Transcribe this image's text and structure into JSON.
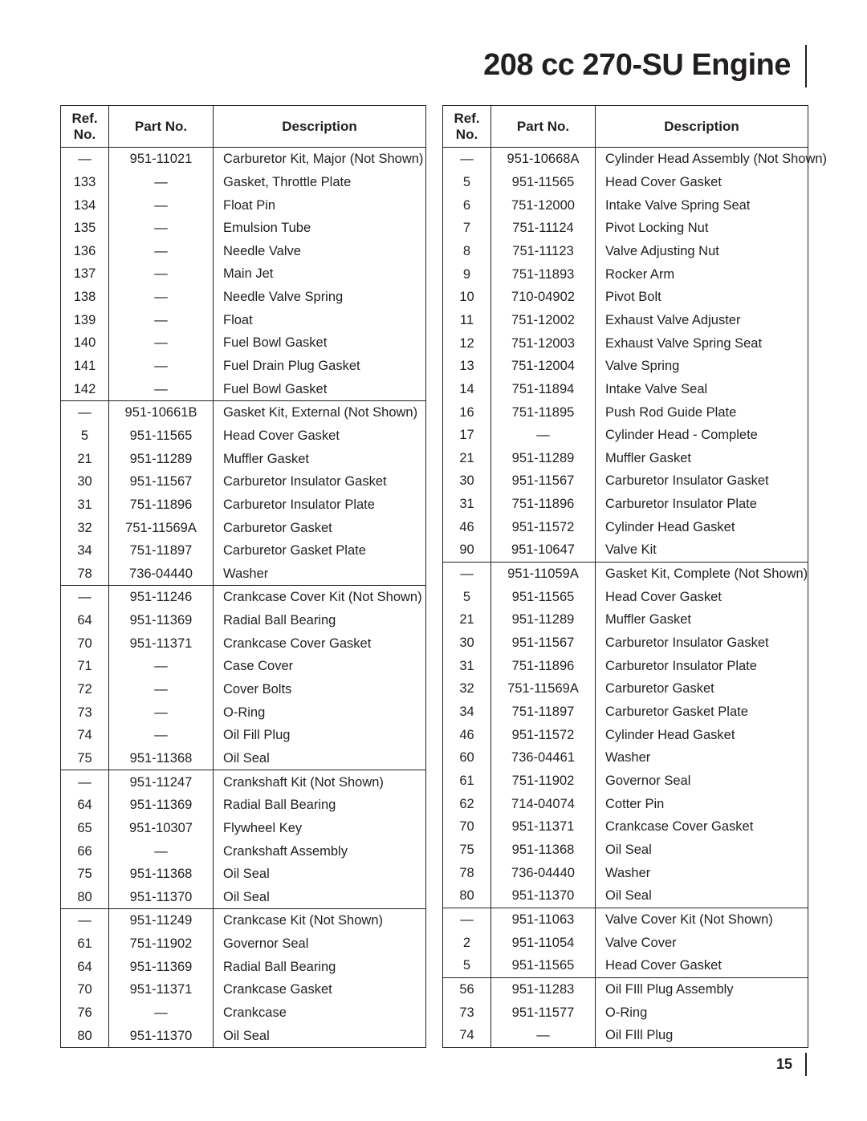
{
  "title": "208 cc 270-SU Engine",
  "page_number": "15",
  "headers": {
    "ref": "Ref.\nNo.",
    "part": "Part No.",
    "desc": "Description"
  },
  "left_table": [
    [
      [
        "—",
        "951-11021",
        "Carburetor Kit, Major (Not Shown)"
      ],
      [
        "133",
        "—",
        "Gasket, Throttle Plate"
      ],
      [
        "134",
        "—",
        "Float Pin"
      ],
      [
        "135",
        "—",
        "Emulsion Tube"
      ],
      [
        "136",
        "—",
        "Needle Valve"
      ],
      [
        "137",
        "—",
        "Main Jet"
      ],
      [
        "138",
        "—",
        "Needle Valve Spring"
      ],
      [
        "139",
        "—",
        "Float"
      ],
      [
        "140",
        "—",
        "Fuel Bowl Gasket"
      ],
      [
        "141",
        "—",
        "Fuel Drain Plug Gasket"
      ],
      [
        "142",
        "—",
        "Fuel Bowl Gasket"
      ]
    ],
    [
      [
        "—",
        "951-10661B",
        "Gasket Kit, External (Not Shown)"
      ],
      [
        "5",
        "951-11565",
        "Head Cover Gasket"
      ],
      [
        "21",
        "951-11289",
        "Muffler Gasket"
      ],
      [
        "30",
        "951-11567",
        "Carburetor Insulator Gasket"
      ],
      [
        "31",
        "751-11896",
        "Carburetor Insulator Plate"
      ],
      [
        "32",
        "751-11569A",
        "Carburetor Gasket"
      ],
      [
        "34",
        "751-11897",
        "Carburetor Gasket Plate"
      ],
      [
        "78",
        "736-04440",
        "Washer"
      ]
    ],
    [
      [
        "—",
        "951-11246",
        "Crankcase Cover Kit (Not Shown)"
      ],
      [
        "64",
        "951-11369",
        "Radial Ball Bearing"
      ],
      [
        "70",
        "951-11371",
        "Crankcase Cover Gasket"
      ],
      [
        "71",
        "—",
        "Case Cover"
      ],
      [
        "72",
        "—",
        "Cover Bolts"
      ],
      [
        "73",
        "—",
        "O-Ring"
      ],
      [
        "74",
        "—",
        "Oil Fill Plug"
      ],
      [
        "75",
        "951-11368",
        "Oil Seal"
      ]
    ],
    [
      [
        "—",
        "951-11247",
        "Crankshaft Kit (Not Shown)"
      ],
      [
        "64",
        "951-11369",
        "Radial Ball Bearing"
      ],
      [
        "65",
        "951-10307",
        "Flywheel Key"
      ],
      [
        "66",
        "—",
        "Crankshaft Assembly"
      ],
      [
        "75",
        "951-11368",
        "Oil Seal"
      ],
      [
        "80",
        "951-11370",
        "Oil Seal"
      ]
    ],
    [
      [
        "—",
        "951-11249",
        "Crankcase Kit (Not Shown)"
      ],
      [
        "61",
        "751-11902",
        "Governor Seal"
      ],
      [
        "64",
        "951-11369",
        "Radial Ball Bearing"
      ],
      [
        "70",
        "951-11371",
        "Crankcase Gasket"
      ],
      [
        "76",
        "—",
        "Crankcase"
      ],
      [
        "80",
        "951-11370",
        "Oil Seal"
      ]
    ]
  ],
  "right_table": [
    [
      [
        "—",
        "951-10668A",
        "Cylinder Head Assembly (Not Shown)"
      ],
      [
        "5",
        "951-11565",
        "Head Cover Gasket"
      ],
      [
        "6",
        "751-12000",
        "Intake Valve Spring Seat"
      ],
      [
        "7",
        "751-11124",
        "Pivot Locking Nut"
      ],
      [
        "8",
        "751-11123",
        "Valve Adjusting Nut"
      ],
      [
        "9",
        "751-11893",
        "Rocker Arm"
      ],
      [
        "10",
        "710-04902",
        "Pivot Bolt"
      ],
      [
        "11",
        "751-12002",
        "Exhaust Valve Adjuster"
      ],
      [
        "12",
        "751-12003",
        "Exhaust Valve Spring Seat"
      ],
      [
        "13",
        "751-12004",
        "Valve Spring"
      ],
      [
        "14",
        "751-11894",
        "Intake Valve Seal"
      ],
      [
        "16",
        "751-11895",
        "Push Rod Guide Plate"
      ],
      [
        "17",
        "—",
        "Cylinder Head - Complete"
      ],
      [
        "21",
        "951-11289",
        "Muffler Gasket"
      ],
      [
        "30",
        "951-11567",
        "Carburetor Insulator Gasket"
      ],
      [
        "31",
        "751-11896",
        "Carburetor Insulator Plate"
      ],
      [
        "46",
        "951-11572",
        "Cylinder Head Gasket"
      ],
      [
        "90",
        "951-10647",
        "Valve Kit"
      ]
    ],
    [
      [
        "—",
        "951-11059A",
        "Gasket Kit, Complete (Not Shown)"
      ],
      [
        "5",
        "951-11565",
        "Head Cover Gasket"
      ],
      [
        "21",
        "951-11289",
        "Muffler Gasket"
      ],
      [
        "30",
        "951-11567",
        "Carburetor Insulator Gasket"
      ],
      [
        "31",
        "751-11896",
        "Carburetor Insulator Plate"
      ],
      [
        "32",
        "751-11569A",
        "Carburetor Gasket"
      ],
      [
        "34",
        "751-11897",
        "Carburetor Gasket Plate"
      ],
      [
        "46",
        "951-11572",
        "Cylinder Head Gasket"
      ],
      [
        "60",
        "736-04461",
        "Washer"
      ],
      [
        "61",
        "751-11902",
        "Governor Seal"
      ],
      [
        "62",
        "714-04074",
        "Cotter Pin"
      ],
      [
        "70",
        "951-11371",
        "Crankcase Cover Gasket"
      ],
      [
        "75",
        "951-11368",
        "Oil Seal"
      ],
      [
        "78",
        "736-04440",
        "Washer"
      ],
      [
        "80",
        "951-11370",
        "Oil Seal"
      ]
    ],
    [
      [
        "—",
        "951-11063",
        "Valve Cover Kit (Not Shown)"
      ],
      [
        "2",
        "951-11054",
        "Valve Cover"
      ],
      [
        "5",
        "951-11565",
        "Head Cover Gasket"
      ]
    ],
    [
      [
        "56",
        "951-11283",
        "Oil FIll Plug Assembly"
      ],
      [
        "73",
        "951-11577",
        "O-Ring"
      ],
      [
        "74",
        "—",
        "Oil FIll Plug"
      ]
    ]
  ]
}
